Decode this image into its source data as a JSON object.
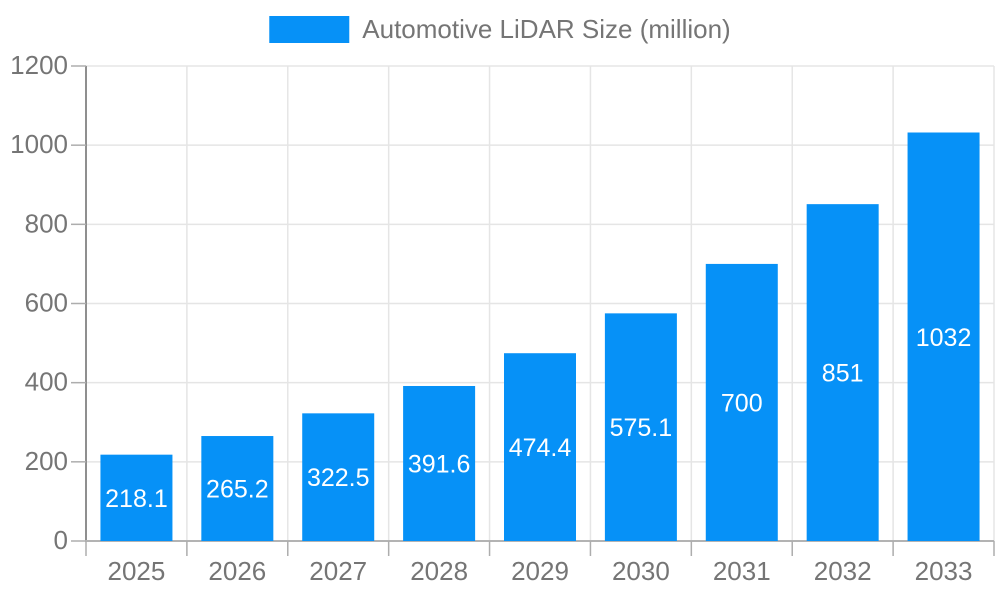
{
  "chart_data": {
    "type": "bar",
    "title": "Automotive LiDAR Size (million)",
    "categories": [
      "2025",
      "2026",
      "2027",
      "2028",
      "2029",
      "2030",
      "2031",
      "2032",
      "2033"
    ],
    "values": [
      218.1,
      265.2,
      322.5,
      391.6,
      474.4,
      575.1,
      700,
      851,
      1032
    ],
    "value_labels": [
      "218.1",
      "265.2",
      "322.5",
      "391.6",
      "474.4",
      "575.1",
      "700",
      "851",
      "1032"
    ],
    "xlabel": "",
    "ylabel": "",
    "ylim": [
      0,
      1200
    ],
    "yticks": [
      0,
      200,
      400,
      600,
      800,
      1000,
      1200
    ],
    "grid": true,
    "legend_position": "top-center",
    "colors": {
      "bar": "#0691f7",
      "grid": "#e5e5e5",
      "axis_y": "#8f8f8f",
      "axis_x": "#b3b3b3",
      "tick": "#adadad",
      "text": "#757575",
      "value_text": "#ffffff",
      "background": "#ffffff"
    }
  }
}
